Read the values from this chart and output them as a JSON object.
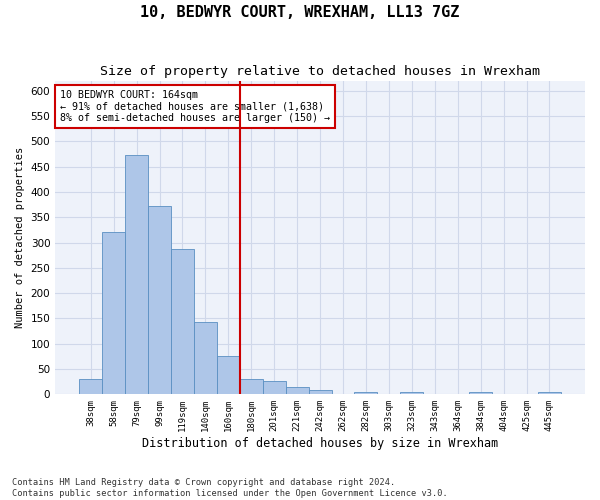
{
  "title": "10, BEDWYR COURT, WREXHAM, LL13 7GZ",
  "subtitle": "Size of property relative to detached houses in Wrexham",
  "xlabel": "Distribution of detached houses by size in Wrexham",
  "ylabel": "Number of detached properties",
  "categories": [
    "38sqm",
    "58sqm",
    "79sqm",
    "99sqm",
    "119sqm",
    "140sqm",
    "160sqm",
    "180sqm",
    "201sqm",
    "221sqm",
    "242sqm",
    "262sqm",
    "282sqm",
    "303sqm",
    "323sqm",
    "343sqm",
    "364sqm",
    "384sqm",
    "404sqm",
    "425sqm",
    "445sqm"
  ],
  "values": [
    30,
    320,
    473,
    373,
    288,
    143,
    75,
    30,
    27,
    15,
    8,
    0,
    5,
    0,
    5,
    0,
    0,
    5,
    0,
    0,
    5
  ],
  "bar_color": "#aec6e8",
  "bar_edge_color": "#5a8fc2",
  "grid_color": "#d0d8ea",
  "background_color": "#eef2fa",
  "vline_x": 6.5,
  "vline_color": "#cc0000",
  "annotation_line1": "10 BEDWYR COURT: 164sqm",
  "annotation_line2": "← 91% of detached houses are smaller (1,638)",
  "annotation_line3": "8% of semi-detached houses are larger (150) →",
  "annotation_box_color": "#ffffff",
  "annotation_box_edge": "#cc0000",
  "footer": "Contains HM Land Registry data © Crown copyright and database right 2024.\nContains public sector information licensed under the Open Government Licence v3.0.",
  "ylim": [
    0,
    620
  ],
  "title_fontsize": 11,
  "subtitle_fontsize": 9.5
}
